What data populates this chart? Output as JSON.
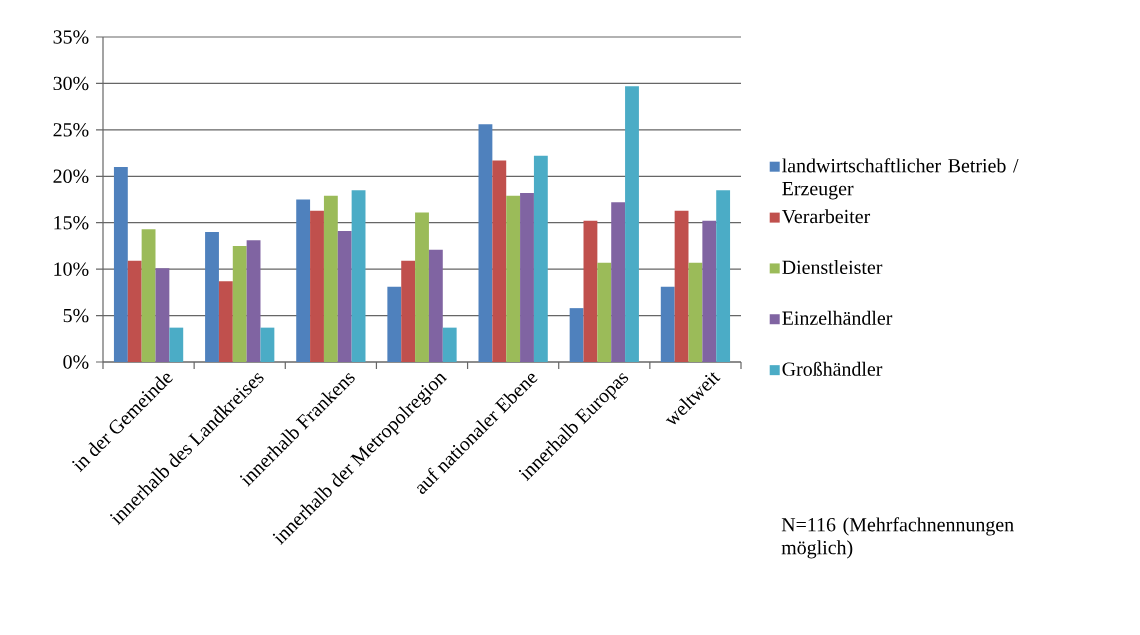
{
  "chart_data": {
    "type": "bar",
    "categories": [
      "in der Gemeinde",
      "innerhalb des Landkreises",
      "innerhalb Frankens",
      "innerhalb der Metropolregion",
      "auf nationaler Ebene",
      "innerhalb Europas",
      "weltweit"
    ],
    "series": [
      {
        "name": "landwirtschaftlicher Betrieb / Erzeuger",
        "color": "#4f81bd",
        "values": [
          21.0,
          14.0,
          17.5,
          8.1,
          25.6,
          5.8,
          8.1
        ]
      },
      {
        "name": "Verarbeiter",
        "color": "#c0504d",
        "values": [
          10.9,
          8.7,
          16.3,
          10.9,
          21.7,
          15.2,
          16.3
        ]
      },
      {
        "name": "Dienstleister",
        "color": "#9bbb59",
        "values": [
          14.3,
          12.5,
          17.9,
          16.1,
          17.9,
          10.7,
          10.7
        ]
      },
      {
        "name": "Einzelhändler",
        "color": "#8064a2",
        "values": [
          10.1,
          13.1,
          14.1,
          12.1,
          18.2,
          17.2,
          15.2
        ]
      },
      {
        "name": "Großhändler",
        "color": "#4bacc6",
        "values": [
          3.7,
          3.7,
          18.5,
          3.7,
          22.2,
          29.7,
          18.5
        ]
      }
    ],
    "ylim": [
      0,
      35
    ],
    "yticks": [
      {
        "value": 0,
        "label": "0%"
      },
      {
        "value": 5,
        "label": "5%"
      },
      {
        "value": 10,
        "label": "10%"
      },
      {
        "value": 15,
        "label": "15%"
      },
      {
        "value": 20,
        "label": "20%"
      },
      {
        "value": 25,
        "label": "25%"
      },
      {
        "value": 30,
        "label": "30%"
      },
      {
        "value": 35,
        "label": "35%"
      }
    ],
    "grid": "y",
    "legend": "right",
    "annotations": [
      "N=116 (Mehrfachnennungen möglich)"
    ]
  }
}
